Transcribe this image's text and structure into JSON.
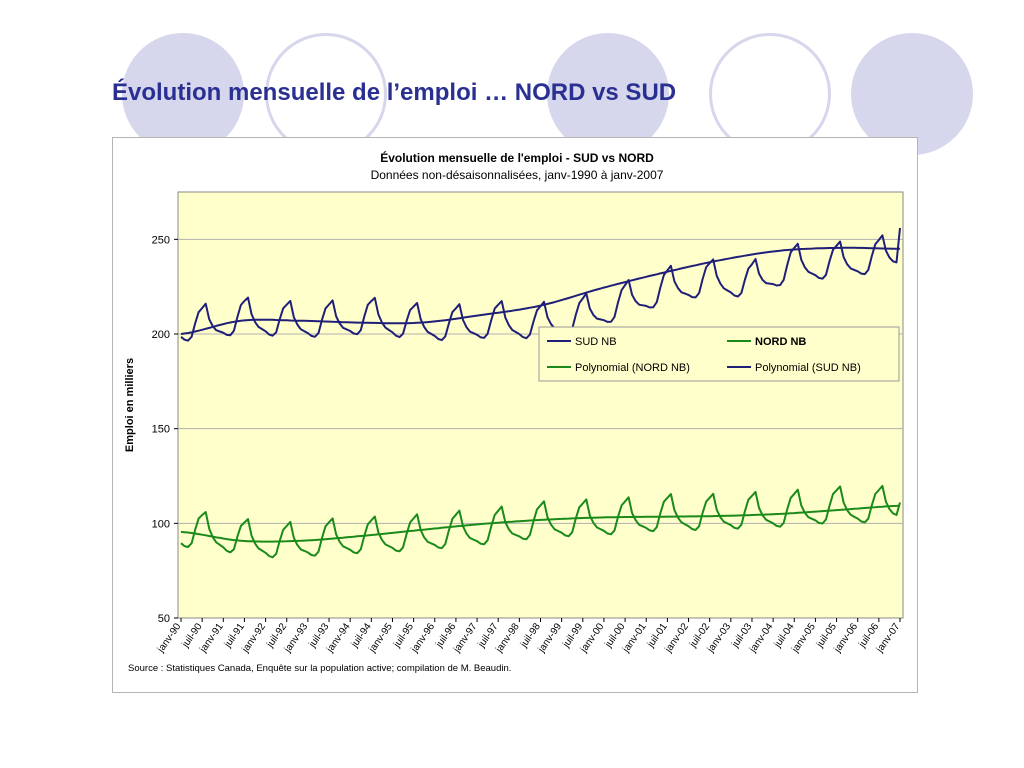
{
  "slide": {
    "title": "Évolution mensuelle de l’emploi … NORD vs SUD",
    "colors": {
      "title": "#2a3092",
      "circle": "#d6d6ec"
    }
  },
  "chart_data": {
    "type": "line",
    "title": "Évolution mensuelle de l'emploi - SUD vs NORD",
    "subtitle": "Données non-désaisonnalisées, janv-1990 à janv-2007",
    "xlabel": "",
    "ylabel": "Emploi en milliers",
    "ylim": [
      50,
      275
    ],
    "yticks": [
      50,
      100,
      150,
      200,
      250
    ],
    "grid": true,
    "plot_background": "#ffffcc",
    "legend_position": "center-right",
    "x_start": "janv-90",
    "x_end": "janv-07",
    "x_ticks": [
      "janv-90",
      "juil-90",
      "janv-91",
      "juil-91",
      "janv-92",
      "juil-92",
      "janv-93",
      "juil-93",
      "janv-94",
      "juil-94",
      "janv-95",
      "juil-95",
      "janv-96",
      "juil-96",
      "janv-97",
      "juil-97",
      "janv-98",
      "juil-98",
      "janv-99",
      "juil-99",
      "janv-00",
      "juil-00",
      "janv-01",
      "juil-01",
      "janv-02",
      "juil-02",
      "janv-03",
      "juil-03",
      "janv-04",
      "juil-04",
      "janv-05",
      "juil-05",
      "janv-06",
      "juil-06",
      "janv-07"
    ],
    "seasonal_shape": [
      -5.5,
      -7,
      -7.5,
      -5.5,
      1.5,
      7.5,
      9.5,
      11.5,
      3,
      -1,
      -3.5,
      -4.5
    ],
    "series": [
      {
        "name": "SUD NB",
        "color": "#1f1f7a",
        "kind": "monthly",
        "annual_means": [
          204,
          208,
          206,
          206,
          208,
          205,
          204,
          206,
          205,
          209,
          216,
          224,
          228,
          227,
          236,
          237,
          240,
          245
        ],
        "last": 256
      },
      {
        "name": "NORD NB",
        "color": "#1a8a1a",
        "kind": "monthly",
        "annual_means": [
          95,
          91,
          89,
          91,
          92,
          93,
          95,
          97,
          100,
          101,
          102,
          104,
          104,
          105,
          106,
          108,
          108,
          110
        ],
        "last": 111
      },
      {
        "name": "Polynomial (NORD NB)",
        "color": "#1a8a1a",
        "kind": "trend",
        "values": [
          95.5,
          90.8,
          90.8,
          93.3,
          96.5,
          99.6,
          101.8,
          103.1,
          103.5,
          103.9,
          105.0,
          107.1,
          109.3
        ]
      },
      {
        "name": "Polynomial (SUD NB)",
        "color": "#1f1f7a",
        "kind": "trend",
        "values": [
          200,
          207,
          207,
          206,
          206,
          210,
          215,
          224,
          232,
          239,
          244,
          245.5,
          245
        ]
      }
    ],
    "source": "Source : Statistiques Canada, Enquête sur la population active; compilation de M. Beaudin."
  }
}
